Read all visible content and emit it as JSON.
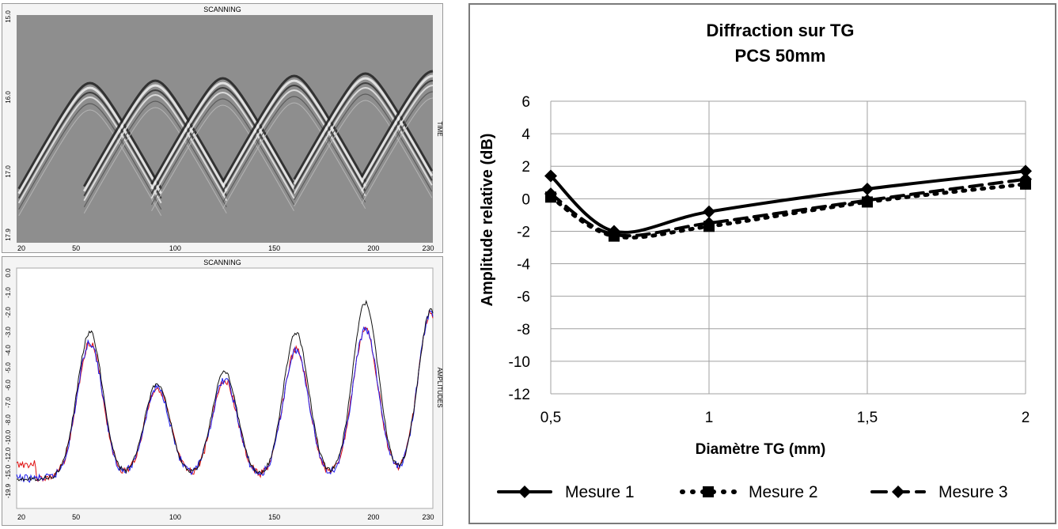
{
  "scan_top": {
    "title": "SCANNING",
    "side_label": "TIME",
    "y_ticks": [
      "15.0",
      "16.0",
      "17.0",
      "17.9"
    ],
    "x_ticks": [
      "20",
      "50",
      "100",
      "150",
      "200",
      "230"
    ],
    "hyperbola_centers_x": [
      57,
      90,
      124,
      160,
      196,
      230
    ]
  },
  "scan_bottom": {
    "title": "SCANNING",
    "side_label": "AMPLITUDES",
    "y_ticks": [
      "0.0",
      "-1.0",
      "-2.0",
      "-3.0",
      "-4.0",
      "-5.0",
      "-6.0",
      "-7.0",
      "-8.0",
      "-10.0",
      "-12.0",
      "-15.0",
      "-19.9"
    ],
    "x_ticks": [
      "20",
      "50",
      "100",
      "150",
      "200",
      "230"
    ],
    "colors": {
      "black": "#111111",
      "red": "#e01010",
      "blue": "#1a1aee"
    }
  },
  "chart_data": {
    "type": "line",
    "title": "Diffraction sur TG",
    "subtitle": "PCS 50mm",
    "xlabel": "Diamètre TG (mm)",
    "ylabel": "Amplitude relative (dB)",
    "x": [
      0.5,
      0.7,
      1.0,
      1.5,
      2.0
    ],
    "x_ticks": [
      "0,5",
      "1",
      "1,5",
      "2"
    ],
    "y_ticks": [
      "6",
      "4",
      "2",
      "0",
      "-2",
      "-4",
      "-6",
      "-8",
      "-10",
      "-12"
    ],
    "xlim": [
      0.5,
      2.0
    ],
    "ylim": [
      -12,
      6
    ],
    "grid": true,
    "legend_position": "bottom",
    "series": [
      {
        "name": "Mesure 1",
        "values": [
          1.4,
          -2.0,
          -0.8,
          0.6,
          1.7
        ],
        "style": "solid",
        "marker": "diamond"
      },
      {
        "name": "Mesure 2",
        "values": [
          0.1,
          -2.3,
          -1.7,
          -0.2,
          0.9
        ],
        "style": "dotted",
        "marker": "square"
      },
      {
        "name": "Mesure 3",
        "values": [
          0.3,
          -2.2,
          -1.5,
          -0.1,
          1.2
        ],
        "style": "dashed",
        "marker": "diamond"
      }
    ]
  }
}
